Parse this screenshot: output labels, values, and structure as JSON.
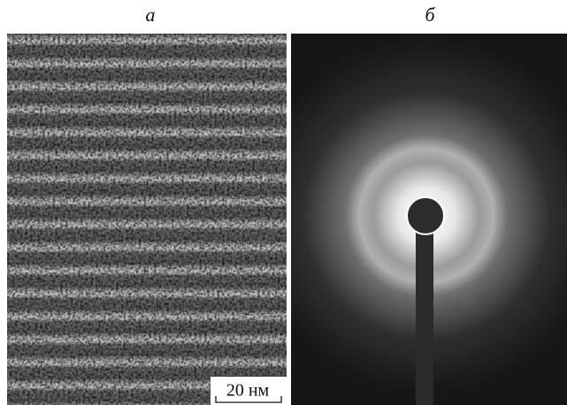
{
  "panels": [
    {
      "label": "а"
    },
    {
      "label": "б"
    }
  ],
  "scale_bar": {
    "label": "20 нм"
  }
}
